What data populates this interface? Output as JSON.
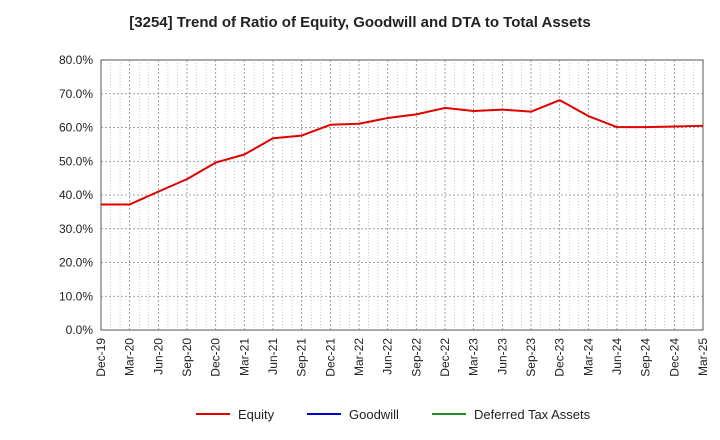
{
  "chart_data": {
    "type": "line",
    "title": "[3254]  Trend of Ratio of Equity, Goodwill and DTA to Total Assets",
    "xlabel": "",
    "ylabel": "",
    "ylim": [
      0,
      80
    ],
    "y_ticks": [
      "0.0%",
      "10.0%",
      "20.0%",
      "30.0%",
      "40.0%",
      "50.0%",
      "60.0%",
      "70.0%",
      "80.0%"
    ],
    "x_ticks": [
      "Dec-19",
      "Mar-20",
      "Jun-20",
      "Sep-20",
      "Dec-20",
      "Mar-21",
      "Jun-21",
      "Sep-21",
      "Dec-21",
      "Mar-22",
      "Jun-22",
      "Sep-22",
      "Dec-22",
      "Mar-23",
      "Jun-23",
      "Sep-23",
      "Dec-23",
      "Mar-24",
      "Jun-24",
      "Sep-24",
      "Dec-24",
      "Mar-25"
    ],
    "grid": true,
    "legend_position": "bottom",
    "series": [
      {
        "name": "Equity",
        "color": "#e00000",
        "values": [
          37.2,
          37.2,
          41.0,
          44.7,
          49.6,
          52.0,
          56.8,
          57.6,
          60.8,
          61.1,
          62.8,
          63.9,
          65.8,
          64.9,
          65.3,
          64.7,
          68.1,
          63.4,
          60.1,
          60.1,
          60.3,
          60.5
        ]
      },
      {
        "name": "Goodwill",
        "color": "#0000cc",
        "values": []
      },
      {
        "name": "Deferred Tax Assets",
        "color": "#228b22",
        "values": []
      }
    ]
  }
}
